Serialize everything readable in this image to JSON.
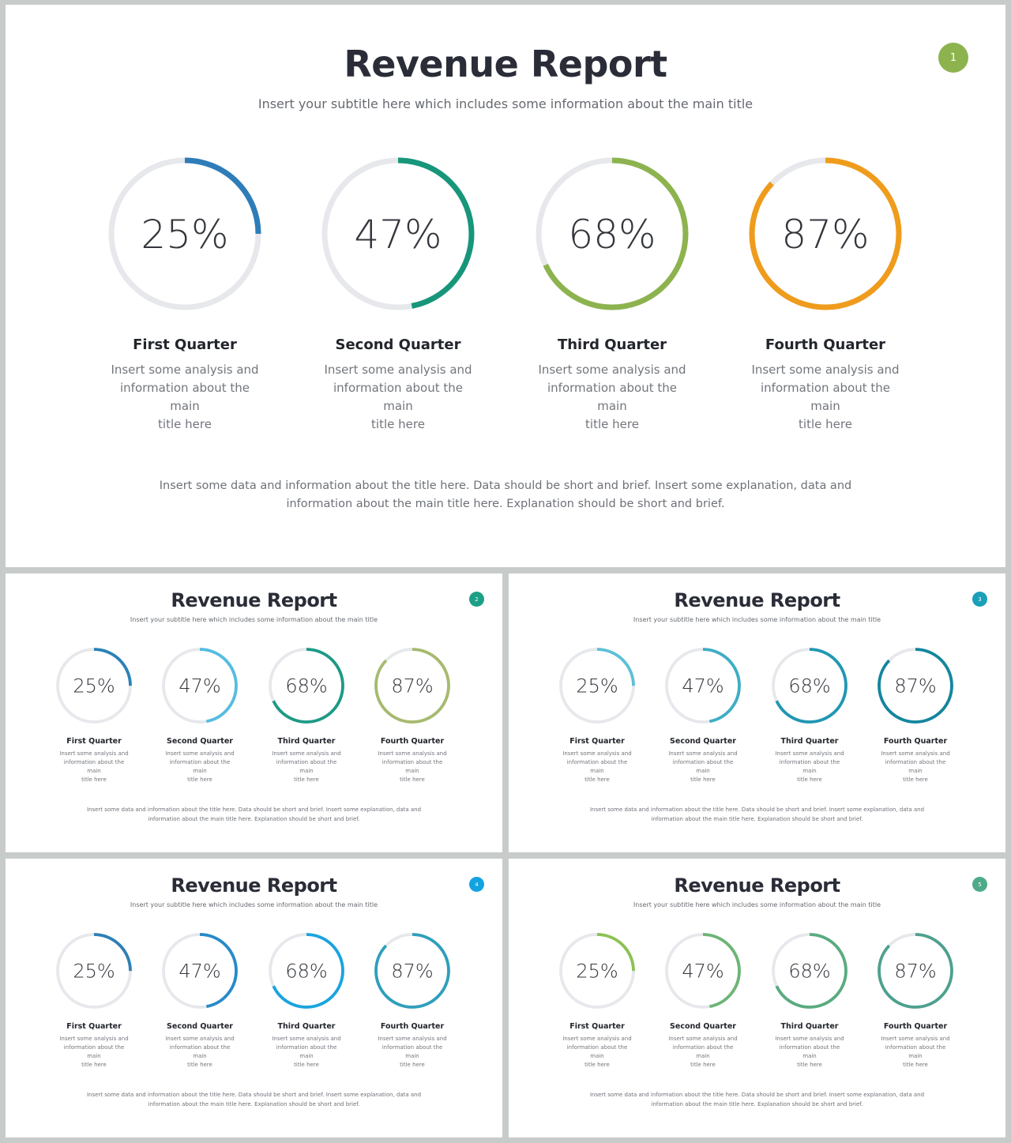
{
  "slides": [
    {
      "title": "Revenue Report",
      "subtitle": "Insert your subtitle here which includes some information about the main title",
      "page_number": "1",
      "badge_color": "#8db34f",
      "footer_line1": "Insert some data and information about the title here. Data should be short and brief. Insert some explanation, data and",
      "footer_line2": "information about the main title here. Explanation should be short and brief.",
      "quarters": [
        {
          "label": "First Quarter",
          "desc_line1": "Insert some analysis and",
          "desc_line2": "information about the main",
          "desc_line3": "title here"
        },
        {
          "label": "Second Quarter",
          "desc_line1": "Insert some analysis and",
          "desc_line2": "information about the main",
          "desc_line3": "title here"
        },
        {
          "label": "Third Quarter",
          "desc_line1": "Insert some analysis and",
          "desc_line2": "information about the main",
          "desc_line3": "title here"
        },
        {
          "label": "Fourth Quarter",
          "desc_line1": "Insert some analysis and",
          "desc_line2": "information about the main",
          "desc_line3": "title here"
        }
      ],
      "ring_colors": [
        "#2e7db8",
        "#17967a",
        "#8db34f",
        "#ef9c1d"
      ]
    },
    {
      "title": "Revenue Report",
      "subtitle": "Insert your subtitle here which includes some information about the main title",
      "page_number": "2",
      "badge_color": "#1d9f86",
      "footer_line1": "Insert some data and information about the title here. Data should be short and brief. Insert some explanation, data and",
      "footer_line2": "information about the main title here. Explanation should be short and brief.",
      "quarters": [
        {
          "label": "First Quarter",
          "desc_line1": "Insert some analysis and",
          "desc_line2": "information about the main",
          "desc_line3": "title here"
        },
        {
          "label": "Second Quarter",
          "desc_line1": "Insert some analysis and",
          "desc_line2": "information about the main",
          "desc_line3": "title here"
        },
        {
          "label": "Third Quarter",
          "desc_line1": "Insert some analysis and",
          "desc_line2": "information about the main",
          "desc_line3": "title here"
        },
        {
          "label": "Fourth Quarter",
          "desc_line1": "Insert some analysis and",
          "desc_line2": "information about the main",
          "desc_line3": "title here"
        }
      ],
      "ring_colors": [
        "#2a82b8",
        "#55bde0",
        "#1d9a86",
        "#a6ba6e"
      ]
    },
    {
      "title": "Revenue Report",
      "subtitle": "Insert your subtitle here which includes some information about the main title",
      "page_number": "3",
      "badge_color": "#1aa0b8",
      "footer_line1": "Insert some data and information about the title here. Data should be short and brief. Insert some explanation, data and",
      "footer_line2": "information about the main title here. Explanation should be short and brief.",
      "quarters": [
        {
          "label": "First Quarter",
          "desc_line1": "Insert some analysis and",
          "desc_line2": "information about the main",
          "desc_line3": "title here"
        },
        {
          "label": "Second Quarter",
          "desc_line1": "Insert some analysis and",
          "desc_line2": "information about the main",
          "desc_line3": "title here"
        },
        {
          "label": "Third Quarter",
          "desc_line1": "Insert some analysis and",
          "desc_line2": "information about the main",
          "desc_line3": "title here"
        },
        {
          "label": "Fourth Quarter",
          "desc_line1": "Insert some analysis and",
          "desc_line2": "information about the main",
          "desc_line3": "title here"
        }
      ],
      "ring_colors": [
        "#5cc1d6",
        "#3eaec4",
        "#2097b3",
        "#14869e"
      ]
    },
    {
      "title": "Revenue Report",
      "subtitle": "Insert your subtitle here which includes some information about the main title",
      "page_number": "4",
      "badge_color": "#12a3e0",
      "footer_line1": "Insert some data and information about the title here. Data should be short and brief. Insert some explanation, data and",
      "footer_line2": "information about the main title here. Explanation should be short and brief.",
      "quarters": [
        {
          "label": "First Quarter",
          "desc_line1": "Insert some analysis and",
          "desc_line2": "information about the main",
          "desc_line3": "title here"
        },
        {
          "label": "Second Quarter",
          "desc_line1": "Insert some analysis and",
          "desc_line2": "information about the main",
          "desc_line3": "title here"
        },
        {
          "label": "Third Quarter",
          "desc_line1": "Insert some analysis and",
          "desc_line2": "information about the main",
          "desc_line3": "title here"
        },
        {
          "label": "Fourth Quarter",
          "desc_line1": "Insert some analysis and",
          "desc_line2": "information about the main",
          "desc_line3": "title here"
        }
      ],
      "ring_colors": [
        "#2d7fb6",
        "#268bc9",
        "#1aa4df",
        "#2f9fbb"
      ]
    },
    {
      "title": "Revenue Report",
      "subtitle": "Insert your subtitle here which includes some information about the main title",
      "page_number": "5",
      "badge_color": "#4eab8a",
      "footer_line1": "Insert some data and information about the title here. Data should be short and brief. Insert some explanation, data and",
      "footer_line2": "information about the main title here. Explanation should be short and brief.",
      "quarters": [
        {
          "label": "First Quarter",
          "desc_line1": "Insert some analysis and",
          "desc_line2": "information about the main",
          "desc_line3": "title here"
        },
        {
          "label": "Second Quarter",
          "desc_line1": "Insert some analysis and",
          "desc_line2": "information about the main",
          "desc_line3": "title here"
        },
        {
          "label": "Third Quarter",
          "desc_line1": "Insert some analysis and",
          "desc_line2": "information about the main",
          "desc_line3": "title here"
        },
        {
          "label": "Fourth Quarter",
          "desc_line1": "Insert some analysis and",
          "desc_line2": "information about the main",
          "desc_line3": "title here"
        }
      ],
      "ring_colors": [
        "#8cc152",
        "#6cb576",
        "#5aab80",
        "#4ea08f"
      ]
    }
  ],
  "track_color": "#e6e8ec",
  "chart_data": {
    "type": "pie",
    "subtype": "progress-ring",
    "categories": [
      "First Quarter",
      "Second Quarter",
      "Third Quarter",
      "Fourth Quarter"
    ],
    "values": [
      25,
      47,
      68,
      87
    ],
    "value_labels": [
      "25%",
      "47%",
      "68%",
      "87%"
    ],
    "max": 100,
    "title": "Revenue Report"
  }
}
